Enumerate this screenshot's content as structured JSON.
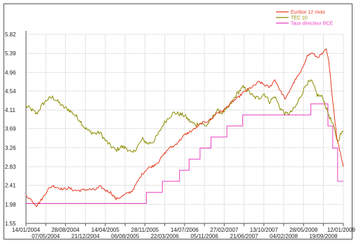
{
  "chart_data": {
    "type": "line",
    "title": "",
    "xlabel": "",
    "ylabel": "",
    "grid": true,
    "legend_position": "top-right",
    "ylim": [
      1.55,
      5.82
    ],
    "y_ticks": [
      "5.82",
      "5.39",
      "4.96",
      "4.54",
      "4.11",
      "3.69",
      "3.26",
      "2.83",
      "2.41",
      "1.98",
      "1.55"
    ],
    "x_range": [
      "2004-01-14",
      "2009-01-12"
    ],
    "x_ticks_top": [
      {
        "date": "2004-01-14",
        "label": "14/01/2004"
      },
      {
        "date": "2004-08-28",
        "label": "28/08/2004"
      },
      {
        "date": "2005-04-14",
        "label": "14/04/2005"
      },
      {
        "date": "2005-11-28",
        "label": "28/11/2005"
      },
      {
        "date": "2006-07-14",
        "label": "14/07/2006"
      },
      {
        "date": "2007-02-27",
        "label": "27/02/2007"
      },
      {
        "date": "2007-10-13",
        "label": "13/10/2007"
      },
      {
        "date": "2008-05-28",
        "label": "28/05/2008"
      },
      {
        "date": "2009-01-12",
        "label": "12/01/2009"
      }
    ],
    "x_ticks_bottom": [
      {
        "date": "2004-05-07",
        "label": "07/05/2004"
      },
      {
        "date": "2004-12-21",
        "label": "21/12/2004"
      },
      {
        "date": "2005-08-06",
        "label": "06/08/2005"
      },
      {
        "date": "2006-03-22",
        "label": "22/03/2006"
      },
      {
        "date": "2006-11-05",
        "label": "05/11/2006"
      },
      {
        "date": "2007-06-21",
        "label": "21/06/2007"
      },
      {
        "date": "2008-02-04",
        "label": "04/02/2008"
      },
      {
        "date": "2008-09-19",
        "label": "19/09/2008"
      }
    ],
    "series": [
      {
        "name": "Euribor 12 mois",
        "color": "#e53a1f",
        "points": [
          [
            "2004-01-14",
            2.18
          ],
          [
            "2004-02-15",
            2.08
          ],
          [
            "2004-03-15",
            1.95
          ],
          [
            "2004-04-15",
            2.1
          ],
          [
            "2004-05-20",
            2.32
          ],
          [
            "2004-06-15",
            2.4
          ],
          [
            "2004-07-15",
            2.36
          ],
          [
            "2004-08-15",
            2.32
          ],
          [
            "2004-09-15",
            2.35
          ],
          [
            "2004-10-15",
            2.3
          ],
          [
            "2004-11-15",
            2.29
          ],
          [
            "2004-12-15",
            2.31
          ],
          [
            "2005-01-15",
            2.32
          ],
          [
            "2005-02-15",
            2.31
          ],
          [
            "2005-03-15",
            2.38
          ],
          [
            "2005-04-15",
            2.3
          ],
          [
            "2005-05-15",
            2.25
          ],
          [
            "2005-06-15",
            2.1
          ],
          [
            "2005-07-15",
            2.15
          ],
          [
            "2005-08-15",
            2.22
          ],
          [
            "2005-09-15",
            2.28
          ],
          [
            "2005-10-15",
            2.48
          ],
          [
            "2005-11-15",
            2.68
          ],
          [
            "2005-12-15",
            2.8
          ],
          [
            "2006-01-15",
            2.85
          ],
          [
            "2006-02-15",
            2.95
          ],
          [
            "2006-03-15",
            3.1
          ],
          [
            "2006-04-15",
            3.25
          ],
          [
            "2006-05-15",
            3.3
          ],
          [
            "2006-06-15",
            3.42
          ],
          [
            "2006-07-15",
            3.55
          ],
          [
            "2006-08-15",
            3.62
          ],
          [
            "2006-09-15",
            3.7
          ],
          [
            "2006-10-15",
            3.8
          ],
          [
            "2006-11-15",
            3.85
          ],
          [
            "2006-12-15",
            3.9
          ],
          [
            "2007-01-15",
            4.05
          ],
          [
            "2007-02-15",
            4.08
          ],
          [
            "2007-03-15",
            4.18
          ],
          [
            "2007-04-15",
            4.3
          ],
          [
            "2007-05-15",
            4.38
          ],
          [
            "2007-06-15",
            4.5
          ],
          [
            "2007-07-15",
            4.58
          ],
          [
            "2007-08-15",
            4.65
          ],
          [
            "2007-09-15",
            4.75
          ],
          [
            "2007-10-15",
            4.68
          ],
          [
            "2007-11-15",
            4.62
          ],
          [
            "2007-12-15",
            4.8
          ],
          [
            "2008-01-15",
            4.55
          ],
          [
            "2008-02-15",
            4.35
          ],
          [
            "2008-03-15",
            4.6
          ],
          [
            "2008-04-15",
            4.82
          ],
          [
            "2008-05-15",
            4.98
          ],
          [
            "2008-06-15",
            5.32
          ],
          [
            "2008-07-15",
            5.4
          ],
          [
            "2008-08-15",
            5.3
          ],
          [
            "2008-09-15",
            5.38
          ],
          [
            "2008-10-05",
            5.48
          ],
          [
            "2008-10-20",
            5.2
          ],
          [
            "2008-11-10",
            4.4
          ],
          [
            "2008-12-05",
            3.5
          ],
          [
            "2009-01-12",
            2.83
          ]
        ]
      },
      {
        "name": "TEC 10",
        "color": "#8c8c00",
        "points": [
          [
            "2004-01-14",
            4.2
          ],
          [
            "2004-02-15",
            4.12
          ],
          [
            "2004-03-15",
            4.02
          ],
          [
            "2004-04-15",
            4.22
          ],
          [
            "2004-05-15",
            4.35
          ],
          [
            "2004-06-15",
            4.4
          ],
          [
            "2004-07-15",
            4.3
          ],
          [
            "2004-08-15",
            4.18
          ],
          [
            "2004-09-15",
            4.12
          ],
          [
            "2004-10-15",
            4.02
          ],
          [
            "2004-11-15",
            3.9
          ],
          [
            "2004-12-15",
            3.72
          ],
          [
            "2005-01-15",
            3.62
          ],
          [
            "2005-02-15",
            3.58
          ],
          [
            "2005-03-15",
            3.6
          ],
          [
            "2005-04-15",
            3.42
          ],
          [
            "2005-05-15",
            3.3
          ],
          [
            "2005-06-15",
            3.2
          ],
          [
            "2005-07-15",
            3.28
          ],
          [
            "2005-08-15",
            3.25
          ],
          [
            "2005-09-15",
            3.12
          ],
          [
            "2005-10-15",
            3.28
          ],
          [
            "2005-11-15",
            3.45
          ],
          [
            "2005-12-15",
            3.35
          ],
          [
            "2006-01-15",
            3.4
          ],
          [
            "2006-02-15",
            3.58
          ],
          [
            "2006-03-15",
            3.8
          ],
          [
            "2006-04-15",
            3.95
          ],
          [
            "2006-05-15",
            4.05
          ],
          [
            "2006-06-15",
            4.02
          ],
          [
            "2006-07-15",
            3.98
          ],
          [
            "2006-08-15",
            3.85
          ],
          [
            "2006-09-15",
            3.78
          ],
          [
            "2006-10-15",
            3.82
          ],
          [
            "2006-11-15",
            3.75
          ],
          [
            "2006-12-15",
            3.9
          ],
          [
            "2007-01-15",
            4.1
          ],
          [
            "2007-02-15",
            4.05
          ],
          [
            "2007-03-15",
            4.12
          ],
          [
            "2007-04-15",
            4.3
          ],
          [
            "2007-05-15",
            4.5
          ],
          [
            "2007-06-15",
            4.62
          ],
          [
            "2007-07-15",
            4.55
          ],
          [
            "2007-08-15",
            4.4
          ],
          [
            "2007-09-15",
            4.38
          ],
          [
            "2007-10-15",
            4.48
          ],
          [
            "2007-11-15",
            4.3
          ],
          [
            "2007-12-15",
            4.42
          ],
          [
            "2008-01-15",
            4.15
          ],
          [
            "2008-02-15",
            4.02
          ],
          [
            "2008-03-15",
            4.05
          ],
          [
            "2008-04-15",
            4.2
          ],
          [
            "2008-05-15",
            4.45
          ],
          [
            "2008-06-15",
            4.72
          ],
          [
            "2008-07-15",
            4.75
          ],
          [
            "2008-08-15",
            4.45
          ],
          [
            "2008-09-15",
            4.4
          ],
          [
            "2008-10-15",
            4.05
          ],
          [
            "2008-11-15",
            3.75
          ],
          [
            "2008-12-10",
            3.4
          ],
          [
            "2008-12-25",
            3.55
          ],
          [
            "2009-01-12",
            3.62
          ]
        ]
      },
      {
        "name": "Taux directeur BCE",
        "color": "#ea3ec2",
        "step": true,
        "points": [
          [
            "2004-01-14",
            2.0
          ],
          [
            "2005-12-06",
            2.25
          ],
          [
            "2006-03-08",
            2.5
          ],
          [
            "2006-06-15",
            2.75
          ],
          [
            "2006-08-09",
            3.0
          ],
          [
            "2006-10-11",
            3.25
          ],
          [
            "2006-12-13",
            3.5
          ],
          [
            "2007-03-14",
            3.75
          ],
          [
            "2007-06-13",
            4.0
          ],
          [
            "2008-07-09",
            4.25
          ],
          [
            "2008-10-15",
            3.75
          ],
          [
            "2008-11-12",
            3.25
          ],
          [
            "2008-12-10",
            2.5
          ],
          [
            "2009-01-12",
            2.5
          ]
        ]
      }
    ]
  }
}
